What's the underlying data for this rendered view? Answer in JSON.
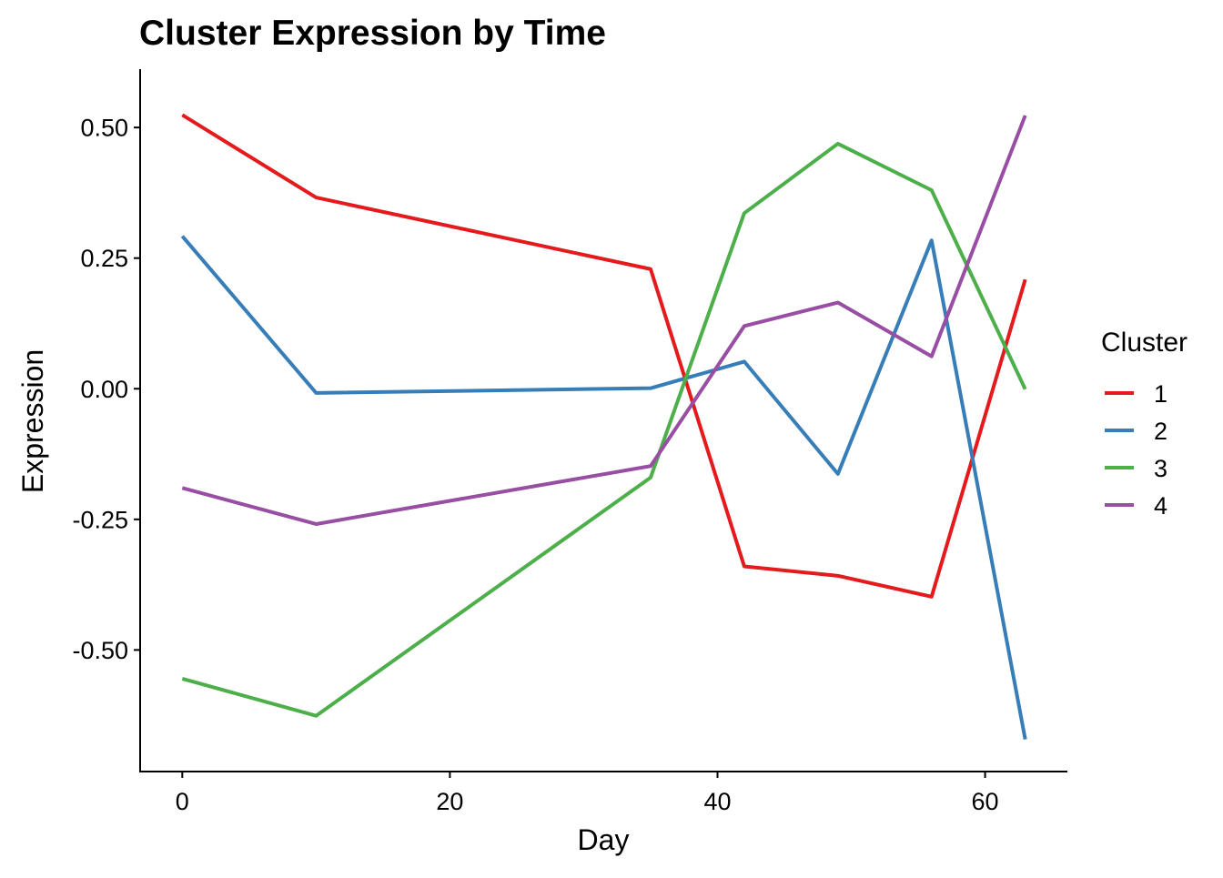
{
  "chart_data": {
    "type": "line",
    "title": "Cluster Expression by Time",
    "xlabel": "Day",
    "ylabel": "Expression",
    "xlim": [
      -3.15,
      66.15
    ],
    "ylim": [
      -0.7327,
      0.6117
    ],
    "x_ticks": [
      0,
      20,
      40,
      60
    ],
    "x_tick_labels": [
      "0",
      "20",
      "40",
      "60"
    ],
    "y_ticks": [
      -0.5,
      -0.25,
      0,
      0.25,
      0.5
    ],
    "y_tick_labels": [
      "-0.50",
      "-0.25",
      "0.00",
      "0.25",
      "0.50"
    ],
    "grid": false,
    "legend": {
      "title": "Cluster",
      "position": "right"
    },
    "x": [
      0,
      10,
      35,
      42,
      49,
      56,
      63
    ],
    "series": [
      {
        "name": "1",
        "color": "#E41A1C",
        "values": [
          0.524,
          0.366,
          0.229,
          -0.34,
          -0.358,
          -0.398,
          0.209
        ]
      },
      {
        "name": "2",
        "color": "#377EB8",
        "values": [
          0.292,
          -0.008,
          0.001,
          0.052,
          -0.163,
          0.284,
          -0.671
        ]
      },
      {
        "name": "3",
        "color": "#4DAF4A",
        "values": [
          -0.555,
          -0.626,
          -0.17,
          0.336,
          0.469,
          0.38,
          -0.001
        ]
      },
      {
        "name": "4",
        "color": "#984EA3",
        "values": [
          -0.19,
          -0.259,
          -0.148,
          0.12,
          0.165,
          0.062,
          0.523
        ]
      }
    ]
  }
}
